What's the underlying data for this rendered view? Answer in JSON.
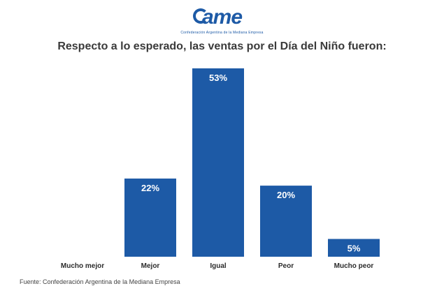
{
  "logo": {
    "word": "ame",
    "subtitle": "Confederación Argentina de la Mediana Empresa"
  },
  "title": "Respecto a lo esperado, las ventas por el Día del Niño fueron:",
  "source": "Fuente: Confederación Argentina de la Mediana Empresa",
  "chart_data": {
    "type": "bar",
    "title": "Respecto a lo esperado, las ventas por el Día del Niño fueron:",
    "categories": [
      "Mucho mejor",
      "Mejor",
      "Igual",
      "Peor",
      "Mucho peor"
    ],
    "values": [
      0,
      22,
      53,
      20,
      5
    ],
    "data_labels": [
      "",
      "22%",
      "53%",
      "20%",
      "5%"
    ],
    "ylim": [
      0,
      53
    ],
    "grid": false,
    "bar_color": "#1d5aa6",
    "label_color": "#ffffff"
  }
}
